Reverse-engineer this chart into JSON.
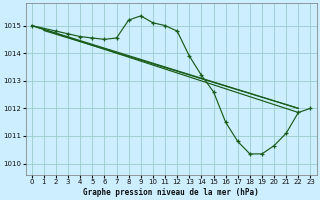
{
  "title": "Graphe pression niveau de la mer (hPa)",
  "bg_color": "#cceeff",
  "grid_color": "#99cccc",
  "line_color": "#1a5c1a",
  "jagged": {
    "x": [
      0,
      2,
      3,
      4,
      5,
      6,
      7,
      8,
      9,
      10,
      11,
      12,
      13,
      14,
      15,
      16,
      17,
      18,
      19,
      20,
      21,
      22,
      23
    ],
    "y": [
      1015.0,
      1014.8,
      1014.7,
      1014.6,
      1014.55,
      1014.5,
      1014.55,
      1015.2,
      1015.35,
      1015.1,
      1015.0,
      1014.8,
      1013.9,
      1013.2,
      1012.6,
      1011.5,
      1010.8,
      1010.35,
      1010.35,
      1010.65,
      1011.1,
      1011.85,
      1012.0
    ]
  },
  "straight1": {
    "x": [
      0,
      22
    ],
    "y": [
      1015.0,
      1012.0
    ]
  },
  "straight2": {
    "x": [
      1,
      22
    ],
    "y": [
      1014.82,
      1012.0
    ]
  },
  "straight3": {
    "x": [
      0,
      22
    ],
    "y": [
      1015.0,
      1011.85
    ]
  },
  "ylim": [
    1009.6,
    1015.8
  ],
  "yticks": [
    1010,
    1011,
    1012,
    1013,
    1014,
    1015
  ],
  "xlim": [
    -0.5,
    23.5
  ],
  "xticks": [
    0,
    1,
    2,
    3,
    4,
    5,
    6,
    7,
    8,
    9,
    10,
    11,
    12,
    13,
    14,
    15,
    16,
    17,
    18,
    19,
    20,
    21,
    22,
    23
  ]
}
